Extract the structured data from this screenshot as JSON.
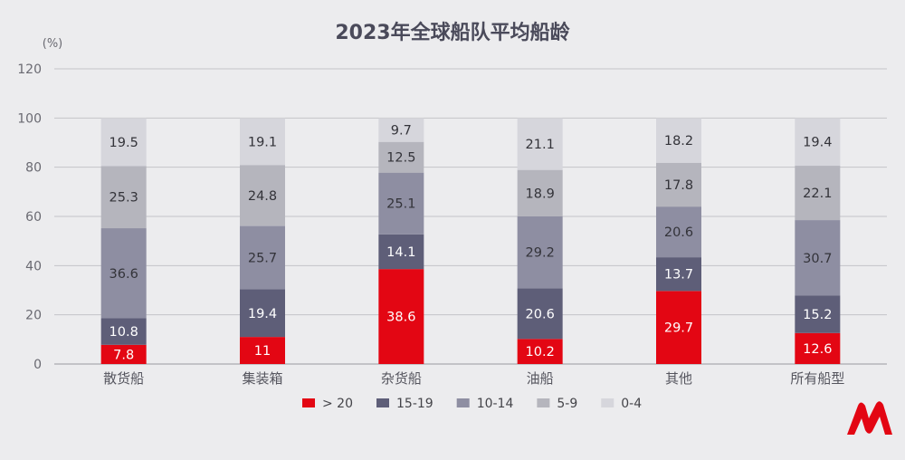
{
  "chart_data": {
    "type": "bar",
    "stacked": true,
    "title": "2023年全球船队平均船龄",
    "ylabel": "(%)",
    "ylim": [
      0,
      120
    ],
    "yticks": [
      0,
      20,
      40,
      60,
      80,
      100,
      120
    ],
    "grid": true,
    "legend_position": "bottom",
    "categories": [
      "散货船",
      "集装箱",
      "杂货船",
      "油船",
      "其他",
      "所有船型"
    ],
    "series": [
      {
        "name": "> 20",
        "color": "#e30613",
        "values": [
          7.8,
          11,
          38.6,
          10.2,
          29.7,
          12.6
        ]
      },
      {
        "name": "15-19",
        "color": "#5e5e78",
        "values": [
          10.8,
          19.4,
          14.1,
          20.6,
          13.7,
          15.2
        ]
      },
      {
        "name": "10-14",
        "color": "#8e8ea2",
        "values": [
          36.6,
          25.7,
          25.1,
          29.2,
          20.6,
          30.7
        ]
      },
      {
        "name": "5-9",
        "color": "#b5b5bd",
        "values": [
          25.3,
          24.8,
          12.5,
          18.9,
          17.8,
          22.1
        ]
      },
      {
        "name": "0-4",
        "color": "#d6d6dc",
        "values": [
          19.5,
          19.1,
          9.7,
          21.1,
          18.2,
          19.4
        ]
      }
    ]
  },
  "logo": {
    "name": "brand-logo",
    "color": "#e30613"
  }
}
